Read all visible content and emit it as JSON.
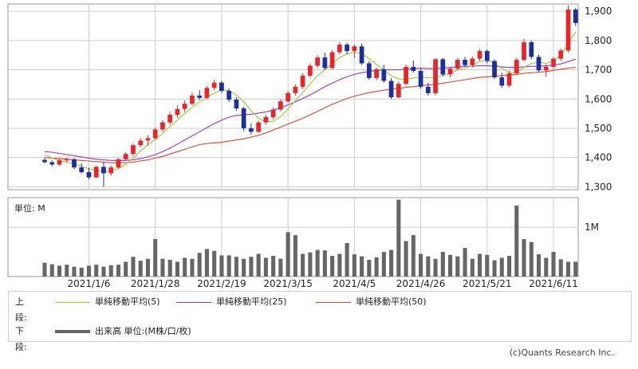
{
  "chart_data": {
    "type": "candlestick",
    "price": {
      "y_ticks": [
        1300,
        1400,
        1500,
        1600,
        1700,
        1800,
        1900
      ],
      "y_tick_labels": [
        "1,300",
        "1,400",
        "1,500",
        "1,600",
        "1,700",
        "1,800",
        "1,900"
      ],
      "ylim": [
        1290,
        1925
      ],
      "candles": [
        [
          1392,
          1398,
          1380,
          1384
        ],
        [
          1384,
          1390,
          1370,
          1376
        ],
        [
          1376,
          1396,
          1372,
          1390
        ],
        [
          1390,
          1400,
          1382,
          1394
        ],
        [
          1394,
          1398,
          1360,
          1366
        ],
        [
          1366,
          1380,
          1345,
          1350
        ],
        [
          1350,
          1365,
          1325,
          1332
        ],
        [
          1332,
          1372,
          1330,
          1368
        ],
        [
          1368,
          1384,
          1300,
          1346
        ],
        [
          1346,
          1372,
          1338,
          1366
        ],
        [
          1366,
          1398,
          1362,
          1394
        ],
        [
          1394,
          1418,
          1390,
          1412
        ],
        [
          1412,
          1448,
          1405,
          1442
        ],
        [
          1442,
          1468,
          1435,
          1458
        ],
        [
          1458,
          1476,
          1440,
          1466
        ],
        [
          1466,
          1502,
          1460,
          1496
        ],
        [
          1496,
          1528,
          1488,
          1520
        ],
        [
          1520,
          1556,
          1512,
          1546
        ],
        [
          1546,
          1578,
          1536,
          1566
        ],
        [
          1566,
          1596,
          1555,
          1584
        ],
        [
          1584,
          1622,
          1578,
          1612
        ],
        [
          1612,
          1630,
          1596,
          1604
        ],
        [
          1604,
          1644,
          1600,
          1638
        ],
        [
          1638,
          1666,
          1630,
          1656
        ],
        [
          1656,
          1662,
          1620,
          1628
        ],
        [
          1628,
          1636,
          1590,
          1598
        ],
        [
          1598,
          1606,
          1560,
          1568
        ],
        [
          1568,
          1574,
          1490,
          1500
        ],
        [
          1500,
          1516,
          1478,
          1488
        ],
        [
          1488,
          1526,
          1484,
          1520
        ],
        [
          1520,
          1546,
          1512,
          1538
        ],
        [
          1538,
          1572,
          1530,
          1564
        ],
        [
          1564,
          1600,
          1558,
          1592
        ],
        [
          1592,
          1628,
          1586,
          1620
        ],
        [
          1620,
          1650,
          1612,
          1642
        ],
        [
          1642,
          1688,
          1634,
          1680
        ],
        [
          1680,
          1722,
          1672,
          1714
        ],
        [
          1714,
          1750,
          1706,
          1742
        ],
        [
          1742,
          1758,
          1700,
          1706
        ],
        [
          1706,
          1768,
          1702,
          1760
        ],
        [
          1760,
          1796,
          1752,
          1786
        ],
        [
          1786,
          1792,
          1754,
          1764
        ],
        [
          1764,
          1786,
          1740,
          1780
        ],
        [
          1780,
          1790,
          1716,
          1722
        ],
        [
          1722,
          1730,
          1666,
          1672
        ],
        [
          1672,
          1708,
          1664,
          1702
        ],
        [
          1702,
          1716,
          1656,
          1662
        ],
        [
          1662,
          1672,
          1600,
          1606
        ],
        [
          1606,
          1660,
          1602,
          1652
        ],
        [
          1652,
          1718,
          1646,
          1710
        ],
        [
          1710,
          1732,
          1690,
          1696
        ],
        [
          1696,
          1704,
          1636,
          1642
        ],
        [
          1642,
          1656,
          1612,
          1620
        ],
        [
          1620,
          1740,
          1612,
          1736
        ],
        [
          1736,
          1740,
          1678,
          1684
        ],
        [
          1684,
          1710,
          1674,
          1704
        ],
        [
          1704,
          1740,
          1698,
          1734
        ],
        [
          1734,
          1744,
          1710,
          1716
        ],
        [
          1716,
          1746,
          1708,
          1738
        ],
        [
          1738,
          1772,
          1730,
          1764
        ],
        [
          1764,
          1770,
          1722,
          1730
        ],
        [
          1730,
          1736,
          1668,
          1674
        ],
        [
          1674,
          1690,
          1638,
          1646
        ],
        [
          1646,
          1696,
          1640,
          1688
        ],
        [
          1688,
          1740,
          1682,
          1734
        ],
        [
          1734,
          1806,
          1728,
          1794
        ],
        [
          1794,
          1800,
          1736,
          1744
        ],
        [
          1744,
          1752,
          1690,
          1698
        ],
        [
          1698,
          1718,
          1676,
          1710
        ],
        [
          1710,
          1744,
          1702,
          1738
        ],
        [
          1738,
          1772,
          1730,
          1766
        ],
        [
          1766,
          1920,
          1760,
          1906
        ],
        [
          1906,
          1912,
          1850,
          1860
        ]
      ],
      "ma5": [
        1410,
        1398,
        1390,
        1384,
        1380,
        1370,
        1362,
        1355,
        1352,
        1354,
        1362,
        1376,
        1398,
        1422,
        1444,
        1462,
        1482,
        1506,
        1528,
        1550,
        1572,
        1590,
        1606,
        1620,
        1632,
        1628,
        1614,
        1590,
        1560,
        1534,
        1522,
        1524,
        1540,
        1566,
        1594,
        1622,
        1652,
        1680,
        1700,
        1720,
        1742,
        1754,
        1760,
        1756,
        1738,
        1718,
        1700,
        1680,
        1668,
        1668,
        1672,
        1676,
        1672,
        1674,
        1680,
        1688,
        1700,
        1706,
        1714,
        1728,
        1734,
        1722,
        1706,
        1690,
        1690,
        1708,
        1722,
        1726,
        1722,
        1730,
        1750,
        1790,
        1830
      ],
      "ma25": [
        1420,
        1418,
        1414,
        1410,
        1406,
        1402,
        1398,
        1394,
        1392,
        1390,
        1390,
        1390,
        1392,
        1396,
        1402,
        1410,
        1420,
        1432,
        1446,
        1460,
        1474,
        1488,
        1502,
        1516,
        1528,
        1538,
        1544,
        1546,
        1548,
        1552,
        1556,
        1562,
        1570,
        1580,
        1590,
        1602,
        1614,
        1628,
        1642,
        1654,
        1666,
        1676,
        1684,
        1690,
        1694,
        1698,
        1700,
        1700,
        1700,
        1702,
        1704,
        1706,
        1704,
        1704,
        1706,
        1708,
        1710,
        1712,
        1712,
        1714,
        1714,
        1712,
        1710,
        1708,
        1708,
        1710,
        1712,
        1712,
        1714,
        1716,
        1720,
        1728,
        1736
      ],
      "ma50": [
        1400,
        1398,
        1396,
        1394,
        1392,
        1390,
        1388,
        1386,
        1384,
        1382,
        1382,
        1382,
        1384,
        1388,
        1392,
        1398,
        1404,
        1412,
        1420,
        1428,
        1436,
        1444,
        1448,
        1450,
        1452,
        1456,
        1460,
        1464,
        1470,
        1476,
        1484,
        1494,
        1504,
        1514,
        1524,
        1534,
        1546,
        1558,
        1570,
        1582,
        1592,
        1602,
        1610,
        1616,
        1622,
        1626,
        1630,
        1634,
        1636,
        1640,
        1642,
        1646,
        1648,
        1650,
        1654,
        1658,
        1662,
        1666,
        1670,
        1674,
        1676,
        1678,
        1680,
        1682,
        1684,
        1688,
        1690,
        1692,
        1694,
        1698,
        1702,
        1706,
        1708
      ]
    },
    "volume": {
      "unit_label": "単位: M",
      "y_tick_labels": [
        "1M"
      ],
      "ylim": [
        0,
        1.6
      ],
      "y_ticks": [
        1
      ],
      "values": [
        0.28,
        0.25,
        0.22,
        0.24,
        0.2,
        0.18,
        0.22,
        0.24,
        0.2,
        0.23,
        0.24,
        0.3,
        0.4,
        0.32,
        0.36,
        0.76,
        0.36,
        0.34,
        0.3,
        0.38,
        0.36,
        0.48,
        0.56,
        0.52,
        0.43,
        0.43,
        0.4,
        0.36,
        0.4,
        0.46,
        0.38,
        0.42,
        0.36,
        0.9,
        0.84,
        0.46,
        0.49,
        0.54,
        0.53,
        0.42,
        0.46,
        0.68,
        0.45,
        0.41,
        0.34,
        0.39,
        0.5,
        0.54,
        1.56,
        0.72,
        0.84,
        0.46,
        0.41,
        0.36,
        0.5,
        0.44,
        0.41,
        0.58,
        0.36,
        0.46,
        0.44,
        0.33,
        0.38,
        0.42,
        1.44,
        0.76,
        0.7,
        0.45,
        0.38,
        0.5,
        0.35,
        0.3,
        0.3
      ]
    },
    "x_tick_labels": [
      "2021/1/6",
      "2021/1/28",
      "2021/2/19",
      "2021/3/15",
      "2021/4/5",
      "2021/4/26",
      "2021/5/21",
      "2021/6/11"
    ],
    "x_tick_indices": [
      6,
      15,
      24,
      33,
      42,
      51,
      60,
      69
    ],
    "colors": {
      "up": "#e8252b",
      "down": "#1c2f9a",
      "ma5": "#99cc33",
      "ma25": "#9933cc",
      "ma50": "#e8402a",
      "volume": "#666666",
      "grid": "#cccccc"
    }
  },
  "legend": {
    "upper_label": "上段:",
    "lower_label": "下段:",
    "ma5_label": "単純移動平均(5)",
    "ma25_label": "単純移動平均(25)",
    "ma50_label": "単純移動平均(50)",
    "volume_label": "出来高 単位:(M株/口/枚)"
  },
  "credit": "(c)Quants Research Inc."
}
